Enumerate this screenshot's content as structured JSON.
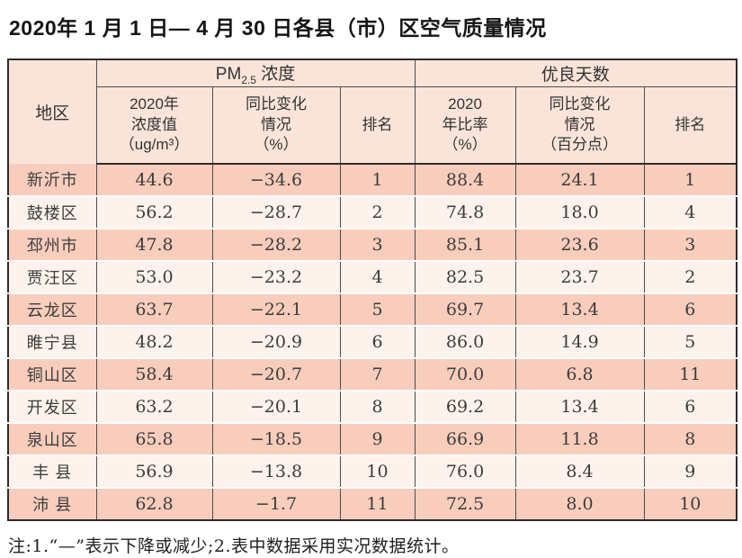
{
  "title": "2020年 1 月 1 日— 4 月 30 日各县（市）区空气质量情况",
  "table": {
    "region_header": "地区",
    "pm_group": {
      "prefix": "PM",
      "sub": "2.5",
      "suffix": " 浓度"
    },
    "good_group": "优良天数",
    "sub_headers": [
      "2020年\n浓度值\n（ug/m³）",
      "同比变化\n情况\n（%）",
      "排名",
      "2020\n年比率\n（%）",
      "同比变化\n情况\n（百分点）",
      "排名"
    ],
    "rows": [
      {
        "region": "新沂市",
        "pm_value": "44.6",
        "pm_change": "−34.6",
        "pm_rank": "1",
        "good_ratio": "88.4",
        "good_change": "24.1",
        "good_rank": "1"
      },
      {
        "region": "鼓楼区",
        "pm_value": "56.2",
        "pm_change": "−28.7",
        "pm_rank": "2",
        "good_ratio": "74.8",
        "good_change": "18.0",
        "good_rank": "4"
      },
      {
        "region": "邳州市",
        "pm_value": "47.8",
        "pm_change": "−28.2",
        "pm_rank": "3",
        "good_ratio": "85.1",
        "good_change": "23.6",
        "good_rank": "3"
      },
      {
        "region": "贾汪区",
        "pm_value": "53.0",
        "pm_change": "−23.2",
        "pm_rank": "4",
        "good_ratio": "82.5",
        "good_change": "23.7",
        "good_rank": "2"
      },
      {
        "region": "云龙区",
        "pm_value": "63.7",
        "pm_change": "−22.1",
        "pm_rank": "5",
        "good_ratio": "69.7",
        "good_change": "13.4",
        "good_rank": "6"
      },
      {
        "region": "睢宁县",
        "pm_value": "48.2",
        "pm_change": "−20.9",
        "pm_rank": "6",
        "good_ratio": "86.0",
        "good_change": "14.9",
        "good_rank": "5"
      },
      {
        "region": "铜山区",
        "pm_value": "58.4",
        "pm_change": "−20.7",
        "pm_rank": "7",
        "good_ratio": "70.0",
        "good_change": "6.8",
        "good_rank": "11"
      },
      {
        "region": "开发区",
        "pm_value": "63.2",
        "pm_change": "−20.1",
        "pm_rank": "8",
        "good_ratio": "69.2",
        "good_change": "13.4",
        "good_rank": "6"
      },
      {
        "region": "泉山区",
        "pm_value": "65.8",
        "pm_change": "−18.5",
        "pm_rank": "9",
        "good_ratio": "66.9",
        "good_change": "11.8",
        "good_rank": "8"
      },
      {
        "region": "丰 县",
        "pm_value": "56.9",
        "pm_change": "−13.8",
        "pm_rank": "10",
        "good_ratio": "76.0",
        "good_change": "8.4",
        "good_rank": "9"
      },
      {
        "region": "沛 县",
        "pm_value": "62.8",
        "pm_change": "−1.7",
        "pm_rank": "11",
        "good_ratio": "72.5",
        "good_change": "8.0",
        "good_rank": "10"
      }
    ]
  },
  "note": "注:1.“—”表示下降或减少;2.表中数据采用实况数据统计。",
  "colors": {
    "header_bg": "#fae4d9",
    "row_odd_bg": "#f8cdbc",
    "row_even_bg": "#fdf3ec",
    "border_dark": "#2d2d2d",
    "grid_line": "#4d4d4d"
  }
}
